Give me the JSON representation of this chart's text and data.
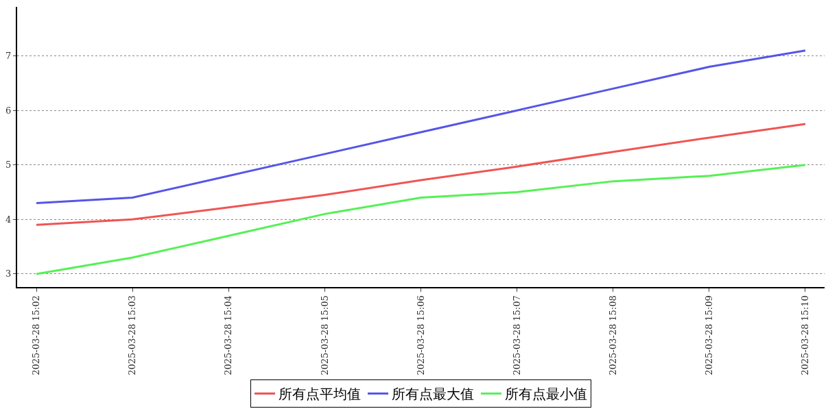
{
  "chart_data": {
    "type": "line",
    "categories": [
      "2025-03-28 15:02",
      "2025-03-28 15:03",
      "2025-03-28 15:04",
      "2025-03-28 15:05",
      "2025-03-28 15:06",
      "2025-03-28 15:07",
      "2025-03-28 15:08",
      "2025-03-28 15:09",
      "2025-03-28 15:10"
    ],
    "series": [
      {
        "name": "所有点平均值",
        "color": "#f05454",
        "values": [
          3.9,
          4.0,
          4.22,
          4.45,
          4.72,
          4.97,
          5.24,
          5.5,
          5.75
        ]
      },
      {
        "name": "所有点最大值",
        "color": "#5555e8",
        "values": [
          4.3,
          4.4,
          4.8,
          5.2,
          5.6,
          6.0,
          6.4,
          6.8,
          7.1
        ]
      },
      {
        "name": "所有点最小值",
        "color": "#55f055",
        "values": [
          3.0,
          3.3,
          3.7,
          4.1,
          4.4,
          4.5,
          4.7,
          4.8,
          5.0
        ]
      }
    ],
    "ylim": [
      2.76,
      7.9
    ],
    "yticks": [
      3,
      4,
      5,
      6,
      7
    ],
    "grid": "y",
    "legend": "bottom",
    "marker": "none",
    "line_style": "solid"
  }
}
